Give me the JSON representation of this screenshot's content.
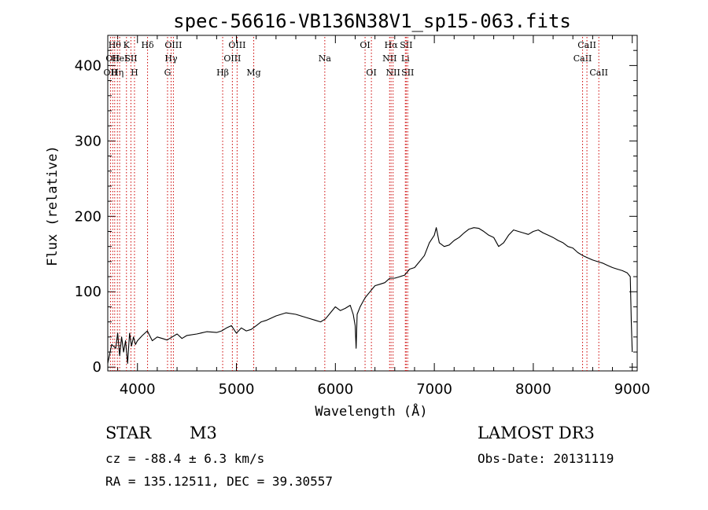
{
  "chart_data": {
    "type": "line",
    "title": "spec-56616-VB136N38V1_sp15-063.fits",
    "xlabel": "Wavelength (Å)",
    "ylabel": "Flux (relative)",
    "xlim": [
      3700,
      9050
    ],
    "ylim": [
      -5,
      440
    ],
    "x_ticks": [
      4000,
      5000,
      6000,
      7000,
      8000,
      9000
    ],
    "y_ticks": [
      0,
      100,
      200,
      300,
      400
    ],
    "grid": false,
    "line_color": "#000000",
    "marker_color": "#cc0000",
    "series": [
      {
        "x": [
          3700,
          3740,
          3780,
          3800,
          3820,
          3840,
          3860,
          3880,
          3900,
          3920,
          3940,
          3960,
          3980,
          4000,
          4050,
          4100,
          4150,
          4200,
          4250,
          4300,
          4350,
          4400,
          4450,
          4500,
          4600,
          4700,
          4800,
          4850,
          4900,
          4950,
          5000,
          5050,
          5100,
          5150,
          5200,
          5250,
          5300,
          5400,
          5500,
          5600,
          5700,
          5800,
          5850,
          5900,
          5950,
          6000,
          6050,
          6100,
          6150,
          6180,
          6200,
          6210,
          6220,
          6250,
          6300,
          6350,
          6400,
          6450,
          6500,
          6550,
          6600,
          6650,
          6700,
          6750,
          6800,
          6850,
          6900,
          6950,
          7000,
          7020,
          7050,
          7100,
          7150,
          7200,
          7250,
          7300,
          7350,
          7400,
          7450,
          7500,
          7550,
          7600,
          7650,
          7700,
          7750,
          7800,
          7850,
          7900,
          7950,
          8000,
          8050,
          8100,
          8150,
          8200,
          8250,
          8300,
          8350,
          8400,
          8450,
          8500,
          8550,
          8600,
          8650,
          8700,
          8750,
          8800,
          8850,
          8900,
          8950,
          8980,
          8990,
          9000
        ],
        "y": [
          5,
          30,
          25,
          45,
          15,
          40,
          20,
          35,
          5,
          45,
          28,
          40,
          30,
          35,
          42,
          48,
          35,
          40,
          38,
          36,
          40,
          44,
          38,
          42,
          44,
          47,
          46,
          48,
          52,
          55,
          45,
          52,
          48,
          50,
          55,
          60,
          62,
          68,
          72,
          70,
          66,
          62,
          60,
          64,
          72,
          80,
          75,
          78,
          82,
          70,
          55,
          25,
          70,
          80,
          92,
          100,
          108,
          110,
          112,
          118,
          118,
          120,
          122,
          130,
          132,
          140,
          148,
          165,
          175,
          185,
          165,
          160,
          162,
          168,
          172,
          178,
          183,
          185,
          184,
          180,
          175,
          172,
          160,
          165,
          175,
          182,
          180,
          178,
          176,
          180,
          182,
          178,
          175,
          172,
          168,
          165,
          160,
          158,
          152,
          148,
          145,
          142,
          140,
          138,
          135,
          132,
          130,
          128,
          125,
          120,
          60,
          20
        ]
      }
    ],
    "spectral_lines": [
      {
        "x": 3727,
        "label": "OII",
        "row": 3
      },
      {
        "x": 3750,
        "label": "OII",
        "row": 2
      },
      {
        "x": 3770,
        "label": "Hθ",
        "row": 1
      },
      {
        "x": 3797,
        "label": "Hη",
        "row": 3
      },
      {
        "x": 3820,
        "label": "HeI",
        "row": 2
      },
      {
        "x": 3889,
        "label": "K",
        "row": 1
      },
      {
        "x": 3934,
        "label": "SII",
        "row": 2
      },
      {
        "x": 3970,
        "label": "H",
        "row": 3
      },
      {
        "x": 4102,
        "label": "Hδ",
        "row": 1
      },
      {
        "x": 4304,
        "label": "G",
        "row": 3
      },
      {
        "x": 4340,
        "label": "Hγ",
        "row": 2
      },
      {
        "x": 4363,
        "label": "OIII",
        "row": 1
      },
      {
        "x": 4861,
        "label": "Hβ",
        "row": 3
      },
      {
        "x": 4959,
        "label": "OIII",
        "row": 2
      },
      {
        "x": 5007,
        "label": "OIII",
        "row": 1
      },
      {
        "x": 5175,
        "label": "Mg",
        "row": 3
      },
      {
        "x": 5893,
        "label": "Na",
        "row": 2
      },
      {
        "x": 6300,
        "label": "OI",
        "row": 1
      },
      {
        "x": 6364,
        "label": "OI",
        "row": 3
      },
      {
        "x": 6548,
        "label": "NII",
        "row": 2
      },
      {
        "x": 6563,
        "label": "Hα",
        "row": 1
      },
      {
        "x": 6583,
        "label": "NII",
        "row": 3
      },
      {
        "x": 6707,
        "label": "Li",
        "row": 2
      },
      {
        "x": 6716,
        "label": "SII",
        "row": 1
      },
      {
        "x": 6731,
        "label": "SII",
        "row": 3
      },
      {
        "x": 8498,
        "label": "CaII",
        "row": 2
      },
      {
        "x": 8542,
        "label": "CaII",
        "row": 1
      },
      {
        "x": 8662,
        "label": "CaII",
        "row": 3
      }
    ]
  },
  "info": {
    "class": "STAR",
    "subclass": "M3",
    "survey": "LAMOST DR3",
    "cz": "cz = -88.4 ± 6.3 km/s",
    "obs_date": "Obs-Date: 20131119",
    "coords": "RA = 135.12511, DEC =  39.30557"
  }
}
